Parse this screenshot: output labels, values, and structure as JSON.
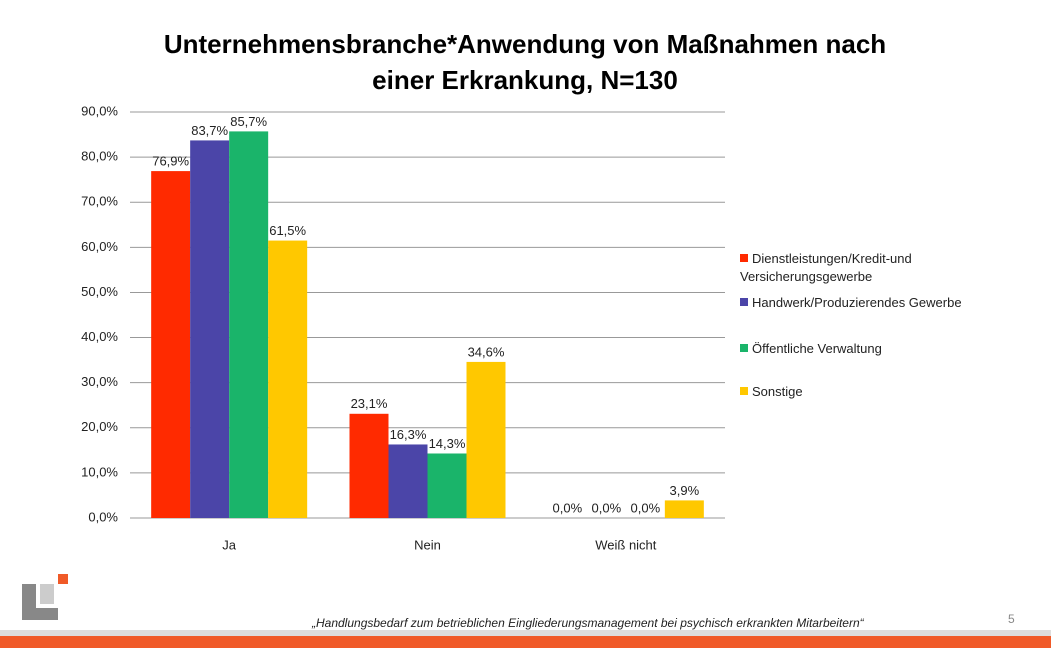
{
  "chart_data": {
    "type": "bar",
    "title": "Unternehmensbranche*Anwendung von Maßnahmen nach einer Erkrankung, N=130",
    "categories": [
      "Ja",
      "Nein",
      "Weiß nicht"
    ],
    "series": [
      {
        "name": "Dienstleistungen/Kredit-und Versicherungsgewerbe",
        "color": "#ff2a00",
        "values": [
          76.9,
          23.1,
          0.0
        ],
        "value_labels": [
          "76,9%",
          "23,1%",
          "0,0%"
        ]
      },
      {
        "name": "Handwerk/Produzierendes Gewerbe",
        "color": "#4b45a8",
        "values": [
          83.7,
          16.3,
          0.0
        ],
        "value_labels": [
          "83,7%",
          "16,3%",
          "0,0%"
        ]
      },
      {
        "name": "Öffentliche Verwaltung",
        "color": "#1ab46a",
        "values": [
          85.7,
          14.3,
          0.0
        ],
        "value_labels": [
          "85,7%",
          "14,3%",
          "0,0%"
        ]
      },
      {
        "name": "Sonstige",
        "color": "#ffc800",
        "values": [
          61.5,
          34.6,
          3.9
        ],
        "value_labels": [
          "61,5%",
          "34,6%",
          "3,9%"
        ]
      }
    ],
    "ylim": [
      0,
      90
    ],
    "yticks": [
      {
        "value": 0,
        "label": "0,0%"
      },
      {
        "value": 10,
        "label": "10,0%"
      },
      {
        "value": 20,
        "label": "20,0%"
      },
      {
        "value": 30,
        "label": "30,0%"
      },
      {
        "value": 40,
        "label": "40,0%"
      },
      {
        "value": 50,
        "label": "50,0%"
      },
      {
        "value": 60,
        "label": "60,0%"
      },
      {
        "value": 70,
        "label": "70,0%"
      },
      {
        "value": 80,
        "label": "80,0%"
      },
      {
        "value": 90,
        "label": "90,0%"
      }
    ],
    "grid": true,
    "legend": "right"
  },
  "footer": {
    "citation": "„Handlungsbedarf zum betrieblichen Eingliederungsmanagement bei psychisch erkrankten Mitarbeitern“",
    "page": "5"
  }
}
